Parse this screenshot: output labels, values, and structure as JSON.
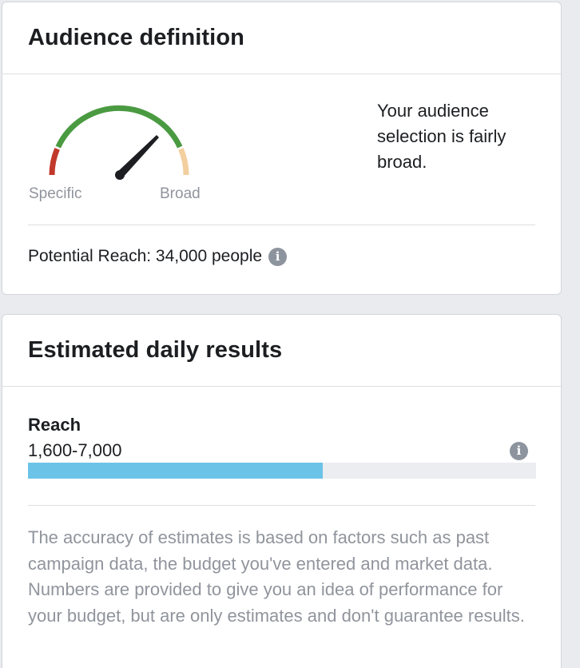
{
  "audience_card": {
    "title": "Audience definition",
    "gauge": {
      "left_label": "Specific",
      "right_label": "Broad",
      "colors": {
        "specific": "#c1392b",
        "fair": "#4a9a41",
        "broad": "#f3cfa0",
        "needle": "#1c1e21"
      }
    },
    "description": "Your audience selection is fairly broad.",
    "potential_reach": "Potential Reach: 34,000 people",
    "info_icon": "info-icon"
  },
  "results_card": {
    "title": "Estimated daily results",
    "metric_label": "Reach",
    "metric_value": "1,600-7,000",
    "info_icon": "info-icon",
    "bar": {
      "fill_fraction": 0.58,
      "fill_color": "#6cc3e8",
      "track_color": "#ebedf0"
    },
    "disclaimer": "The accuracy of estimates is based on factors such as past campaign data, the budget you've entered and market data. Numbers are provided to give you an idea of performance for your budget, but are only estimates and don't guarantee results."
  }
}
